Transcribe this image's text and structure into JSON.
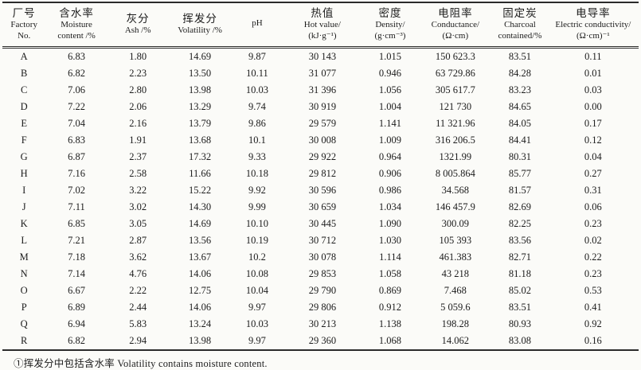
{
  "table": {
    "columns": [
      {
        "zh": "厂号",
        "en": [
          "Factory",
          "No."
        ]
      },
      {
        "zh": "含水率",
        "en": [
          "Moisture",
          "content /%"
        ]
      },
      {
        "zh": "灰分",
        "en": [
          "Ash /%"
        ]
      },
      {
        "zh": "挥发分",
        "en": [
          "Volatility /%"
        ]
      },
      {
        "zh": "",
        "en": [
          "pH"
        ]
      },
      {
        "zh": "热值",
        "en": [
          "Hot value/",
          "(kJ·g⁻¹)"
        ]
      },
      {
        "zh": "密度",
        "en": [
          "Density/",
          "(g·cm⁻³)"
        ]
      },
      {
        "zh": "电阻率",
        "en": [
          "Conductance/",
          "(Ω·cm)"
        ]
      },
      {
        "zh": "固定炭",
        "en": [
          "Charcoal",
          "contained/%"
        ]
      },
      {
        "zh": "电导率",
        "en": [
          "Electric conductivity/",
          "(Ω·cm)⁻¹"
        ]
      }
    ],
    "rows": [
      {
        "factory": "A",
        "values": [
          "6.83",
          "1.80",
          "14.69",
          "9.87",
          "30 143",
          "1.015",
          "150 623.3",
          "83.51",
          "0.11"
        ]
      },
      {
        "factory": "B",
        "values": [
          "6.82",
          "2.23",
          "13.50",
          "10.11",
          "31 077",
          "0.946",
          "63 729.86",
          "84.28",
          "0.01"
        ]
      },
      {
        "factory": "C",
        "values": [
          "7.06",
          "2.80",
          "13.98",
          "10.03",
          "31 396",
          "1.056",
          "305 617.7",
          "83.23",
          "0.03"
        ]
      },
      {
        "factory": "D",
        "values": [
          "7.22",
          "2.06",
          "13.29",
          "9.74",
          "30 919",
          "1.004",
          "121 730",
          "84.65",
          "0.00"
        ]
      },
      {
        "factory": "E",
        "values": [
          "7.04",
          "2.16",
          "13.79",
          "9.86",
          "29 579",
          "1.141",
          "11 321.96",
          "84.05",
          "0.17"
        ]
      },
      {
        "factory": "F",
        "values": [
          "6.83",
          "1.91",
          "13.68",
          "10.1",
          "30 008",
          "1.009",
          "316 206.5",
          "84.41",
          "0.12"
        ]
      },
      {
        "factory": "G",
        "values": [
          "6.87",
          "2.37",
          "17.32",
          "9.33",
          "29 922",
          "0.964",
          "1321.99",
          "80.31",
          "0.04"
        ]
      },
      {
        "factory": "H",
        "values": [
          "7.16",
          "2.58",
          "11.66",
          "10.18",
          "29 812",
          "0.906",
          "8 005.864",
          "85.77",
          "0.27"
        ]
      },
      {
        "factory": "I",
        "values": [
          "7.02",
          "3.22",
          "15.22",
          "9.92",
          "30 596",
          "0.986",
          "34.568",
          "81.57",
          "0.31"
        ]
      },
      {
        "factory": "J",
        "values": [
          "7.11",
          "3.02",
          "14.30",
          "9.99",
          "30 659",
          "1.034",
          "146 457.9",
          "82.69",
          "0.06"
        ]
      },
      {
        "factory": "K",
        "values": [
          "6.85",
          "3.05",
          "14.69",
          "10.10",
          "30 445",
          "1.090",
          "300.09",
          "82.25",
          "0.23"
        ]
      },
      {
        "factory": "L",
        "values": [
          "7.21",
          "2.87",
          "13.56",
          "10.19",
          "30 712",
          "1.030",
          "105 393",
          "83.56",
          "0.02"
        ]
      },
      {
        "factory": "M",
        "values": [
          "7.18",
          "3.62",
          "13.67",
          "10.2",
          "30 078",
          "1.114",
          "461.383",
          "82.71",
          "0.22"
        ]
      },
      {
        "factory": "N",
        "values": [
          "7.14",
          "4.76",
          "14.06",
          "10.08",
          "29 853",
          "1.058",
          "43 218",
          "81.18",
          "0.23"
        ]
      },
      {
        "factory": "O",
        "values": [
          "6.67",
          "2.22",
          "12.75",
          "10.04",
          "29 790",
          "0.869",
          "7.468",
          "85.02",
          "0.53"
        ]
      },
      {
        "factory": "P",
        "values": [
          "6.89",
          "2.44",
          "14.06",
          "9.97",
          "29 806",
          "0.912",
          "5 059.6",
          "83.51",
          "0.41"
        ]
      },
      {
        "factory": "Q",
        "values": [
          "6.94",
          "5.83",
          "13.24",
          "10.03",
          "30 213",
          "1.138",
          "198.28",
          "80.93",
          "0.92"
        ]
      },
      {
        "factory": "R",
        "values": [
          "6.82",
          "2.94",
          "13.98",
          "9.97",
          "29 360",
          "1.068",
          "14.062",
          "83.08",
          "0.16"
        ]
      }
    ]
  },
  "footnote": "①挥发分中包括含水率 Volatility contains moisture content.",
  "colors": {
    "text": "#1c1c1c",
    "rule_line": "#2b2b2b",
    "background": "#fbfbf8"
  }
}
